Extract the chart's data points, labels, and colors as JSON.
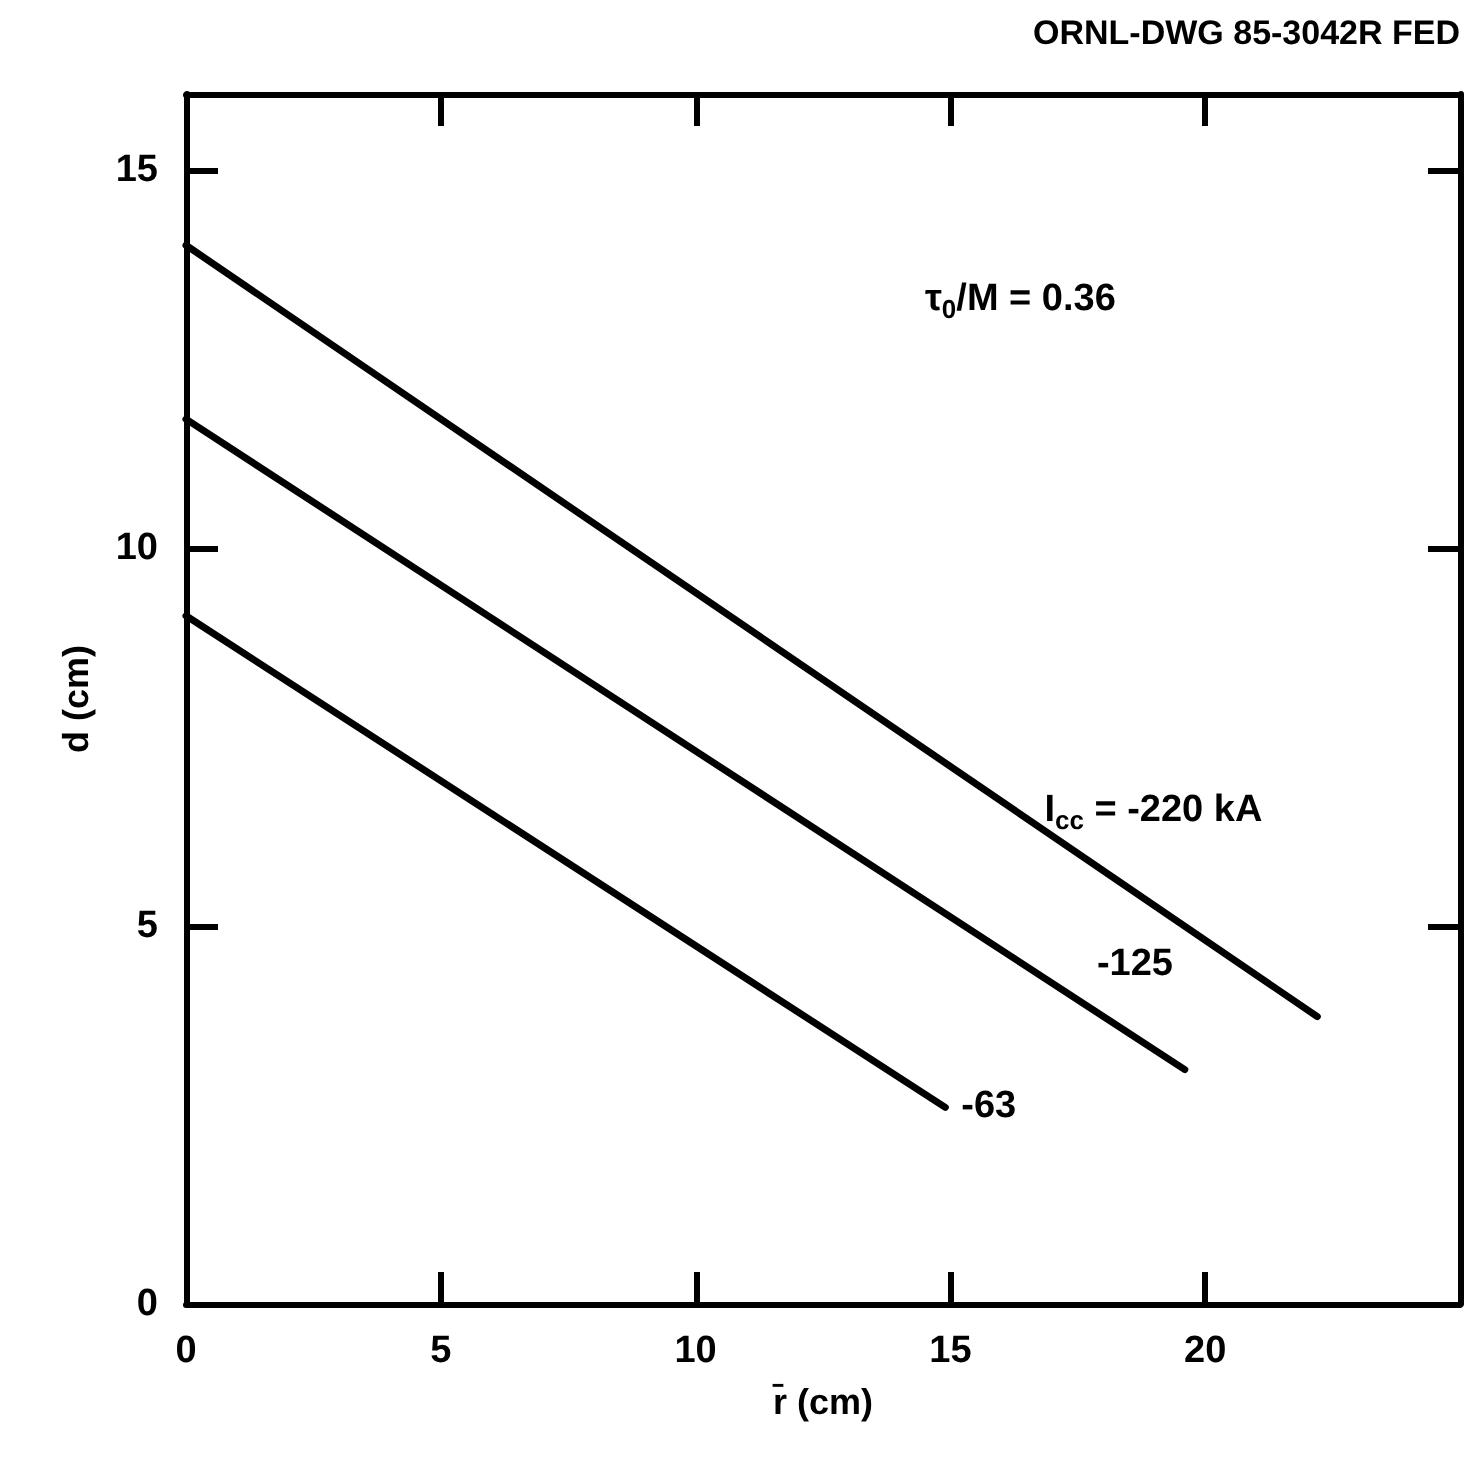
{
  "chart_data": {
    "type": "line",
    "xlabel": "r̄ (cm)",
    "ylabel": "d (cm)",
    "annotations": [
      "ORNL-DWG 85-3042R FED",
      "τ$_{0}$/M = 0.36"
    ],
    "xlim": [
      0,
      25
    ],
    "xticks": [
      0,
      5,
      10,
      15,
      20
    ],
    "ylim": [
      0,
      16
    ],
    "yticks": [
      0,
      5,
      10,
      15
    ],
    "grid": false,
    "legend": false,
    "marker": "none",
    "line_style": "solid",
    "series": [
      {
        "name": "I$_{cc}$ = -220 kA",
        "color": "#000000",
        "x": [
          0,
          22.2
        ],
        "values": [
          14,
          3.8
        ]
      },
      {
        "name": "-125",
        "color": "#000000",
        "x": [
          0,
          19.6
        ],
        "values": [
          11.7,
          3.1
        ]
      },
      {
        "name": "-63",
        "color": "#000000",
        "x": [
          0,
          14.9
        ],
        "values": [
          9.1,
          2.6
        ]
      }
    ]
  }
}
